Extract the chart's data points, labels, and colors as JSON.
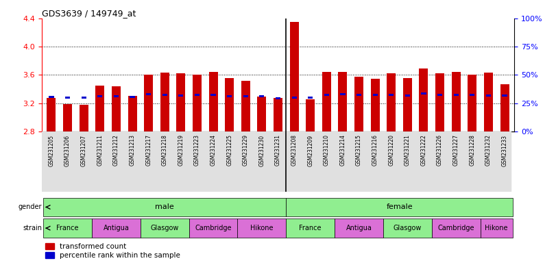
{
  "title": "GDS3639 / 149749_at",
  "samples": [
    "GSM231205",
    "GSM231206",
    "GSM231207",
    "GSM231211",
    "GSM231212",
    "GSM231213",
    "GSM231217",
    "GSM231218",
    "GSM231219",
    "GSM231223",
    "GSM231224",
    "GSM231225",
    "GSM231229",
    "GSM231230",
    "GSM231231",
    "GSM231208",
    "GSM231209",
    "GSM231210",
    "GSM231214",
    "GSM231215",
    "GSM231216",
    "GSM231220",
    "GSM231221",
    "GSM231222",
    "GSM231226",
    "GSM231227",
    "GSM231228",
    "GSM231232",
    "GSM231233"
  ],
  "red_values": [
    3.27,
    3.19,
    3.18,
    3.45,
    3.44,
    3.3,
    3.6,
    3.63,
    3.62,
    3.6,
    3.64,
    3.56,
    3.52,
    3.29,
    3.27,
    4.35,
    3.26,
    3.64,
    3.64,
    3.58,
    3.55,
    3.62,
    3.56,
    3.69,
    3.62,
    3.64,
    3.6,
    3.63,
    3.47
  ],
  "blue_values": [
    3.29,
    3.28,
    3.28,
    3.3,
    3.3,
    3.29,
    3.33,
    3.32,
    3.31,
    3.32,
    3.32,
    3.3,
    3.3,
    3.3,
    3.27,
    3.28,
    3.28,
    3.32,
    3.33,
    3.32,
    3.32,
    3.32,
    3.31,
    3.34,
    3.32,
    3.32,
    3.32,
    3.31,
    3.31
  ],
  "ymin": 2.8,
  "ymax": 4.4,
  "y_ticks_left": [
    2.8,
    3.2,
    3.6,
    4.0,
    4.4
  ],
  "y_ticks_right_vals": [
    0,
    25,
    50,
    75,
    100
  ],
  "bar_color_red": "#CC0000",
  "bar_color_blue": "#0000CC",
  "bar_width": 0.55,
  "gender_color": "#90EE90",
  "strain_groups_list": [
    [
      "France",
      0,
      2,
      "#90EE90"
    ],
    [
      "Antigua",
      3,
      5,
      "#DA70D6"
    ],
    [
      "Glasgow",
      6,
      8,
      "#90EE90"
    ],
    [
      "Cambridge",
      9,
      11,
      "#DA70D6"
    ],
    [
      "Hikone",
      12,
      14,
      "#DA70D6"
    ],
    [
      "France",
      15,
      17,
      "#90EE90"
    ],
    [
      "Antigua",
      18,
      20,
      "#DA70D6"
    ],
    [
      "Glasgow",
      21,
      23,
      "#90EE90"
    ],
    [
      "Cambridge",
      24,
      26,
      "#DA70D6"
    ],
    [
      "Hikone",
      27,
      28,
      "#DA70D6"
    ]
  ]
}
